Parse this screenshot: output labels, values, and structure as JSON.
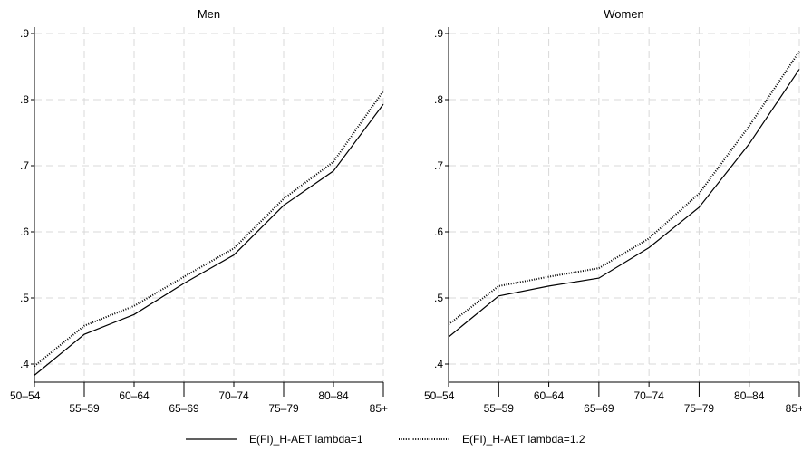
{
  "chart_data": [
    {
      "type": "line",
      "title": "Men",
      "xlabel": "",
      "ylabel": "",
      "categories": [
        "50–54",
        "55–59",
        "60–64",
        "65–69",
        "70–74",
        "75–79",
        "80–84",
        "85+"
      ],
      "ylim": [
        0.4,
        0.9
      ],
      "yticks": [
        ".4",
        ".5",
        ".6",
        ".7",
        ".8",
        ".9"
      ],
      "grid": true,
      "series": [
        {
          "name": "E(FI)_H-AET lambda=1",
          "style": "solid",
          "values": [
            0.383,
            0.445,
            0.475,
            0.522,
            0.565,
            0.64,
            0.692,
            0.793
          ]
        },
        {
          "name": "E(FI)_H-AET lambda=1.2",
          "style": "dotted",
          "values": [
            0.397,
            0.458,
            0.488,
            0.532,
            0.575,
            0.65,
            0.706,
            0.813
          ]
        }
      ]
    },
    {
      "type": "line",
      "title": "Women",
      "xlabel": "",
      "ylabel": "",
      "categories": [
        "50–54",
        "55–59",
        "60–64",
        "65–69",
        "70–74",
        "75–79",
        "80–84",
        "85+"
      ],
      "ylim": [
        0.4,
        0.9
      ],
      "yticks": [
        ".4",
        ".5",
        ".6",
        ".7",
        ".8",
        ".9"
      ],
      "grid": true,
      "series": [
        {
          "name": "E(FI)_H-AET lambda=1",
          "style": "solid",
          "values": [
            0.441,
            0.503,
            0.518,
            0.53,
            0.576,
            0.637,
            0.733,
            0.846
          ]
        },
        {
          "name": "E(FI)_H-AET lambda=1.2",
          "style": "dotted",
          "values": [
            0.46,
            0.518,
            0.532,
            0.545,
            0.59,
            0.658,
            0.76,
            0.873
          ]
        }
      ]
    }
  ],
  "legend": {
    "position": "bottom",
    "items": [
      {
        "label": "E(FI)_H-AET lambda=1",
        "style": "solid"
      },
      {
        "label": "E(FI)_H-AET lambda=1.2",
        "style": "dotted"
      }
    ]
  },
  "colors": {
    "line": "#000000",
    "grid": "#d9d9d9",
    "axis": "#000000",
    "background": "#ffffff"
  }
}
